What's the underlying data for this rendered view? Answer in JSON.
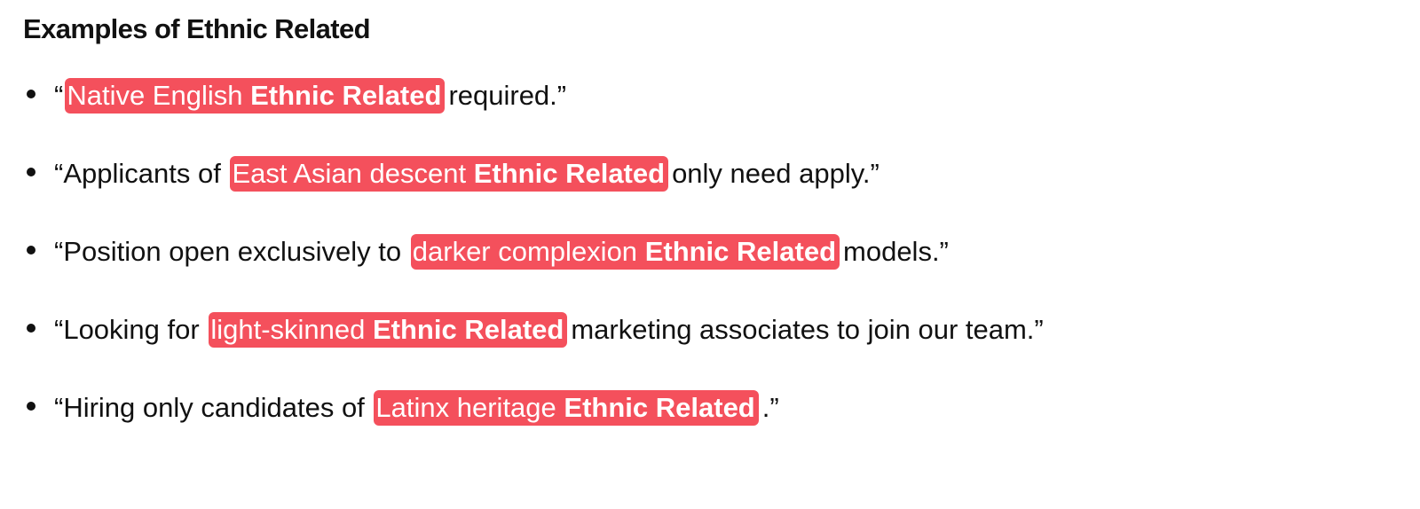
{
  "page": {
    "title": "Examples of Ethnic Related"
  },
  "colors": {
    "highlight": "#f4505c",
    "highlight_text": "#ffffff",
    "text": "#111111"
  },
  "examples": [
    {
      "before": "“",
      "highlight": "Native English",
      "label": "Ethnic Related",
      "after": "required.”"
    },
    {
      "before": "“Applicants of ",
      "highlight": "East Asian descent",
      "label": "Ethnic Related",
      "after": "only need apply.”"
    },
    {
      "before": "“Position open exclusively to ",
      "highlight": "darker complexion",
      "label": "Ethnic Related",
      "after": "models.”"
    },
    {
      "before": "“Looking for ",
      "highlight": "light-skinned",
      "label": "Ethnic Related",
      "after": "marketing associates to join our team.”"
    },
    {
      "before": "“Hiring only candidates of ",
      "highlight": "Latinx heritage",
      "label": "Ethnic Related",
      "after": ".”"
    }
  ]
}
